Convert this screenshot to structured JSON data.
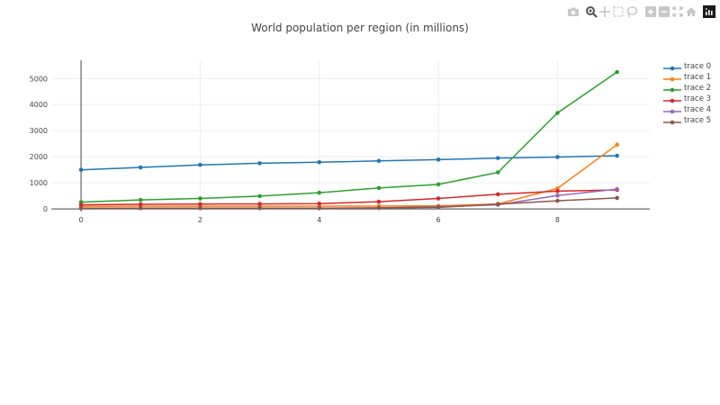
{
  "modebar": {
    "buttons": [
      {
        "name": "camera-icon",
        "label": "Download plot as a png"
      },
      {
        "name": "zoom-icon",
        "label": "Zoom"
      },
      {
        "name": "pan-icon",
        "label": "Pan"
      },
      {
        "name": "box-select-icon",
        "label": "Box Select"
      },
      {
        "name": "lasso-select-icon",
        "label": "Lasso Select"
      },
      {
        "name": "zoom-in-icon",
        "label": "Zoom in"
      },
      {
        "name": "zoom-out-icon",
        "label": "Zoom out"
      },
      {
        "name": "autoscale-icon",
        "label": "Autoscale"
      },
      {
        "name": "reset-axes-icon",
        "label": "Reset axes"
      },
      {
        "name": "plotly-logo-icon",
        "label": "Produced with Plotly"
      }
    ]
  },
  "colors": {
    "trace0": "#1f77b4",
    "trace1": "#ff7f0e",
    "trace2": "#2ca02c",
    "trace3": "#d62728",
    "trace4": "#9467bd",
    "trace5": "#8c564b",
    "grid": "#eeeeee",
    "axis_text": "#444444"
  },
  "chart_data": {
    "type": "line",
    "title": "World population per region (in millions)",
    "xlabel": "",
    "ylabel": "",
    "x": [
      0,
      1,
      2,
      3,
      4,
      5,
      6,
      7,
      8,
      9
    ],
    "xlim": [
      -0.5,
      9.55
    ],
    "ylim": [
      -100,
      5700
    ],
    "xticks": [
      "0",
      "2",
      "4",
      "6",
      "8"
    ],
    "yticks": [
      "0",
      "1000",
      "2000",
      "3000",
      "4000",
      "5000"
    ],
    "grid": true,
    "legend_position": "right",
    "series": [
      {
        "name": "trace 0",
        "color": "#1f77b4",
        "values": [
          1500,
          1590,
          1690,
          1750,
          1790,
          1840,
          1890,
          1950,
          1990,
          2040
        ]
      },
      {
        "name": "trace 1",
        "color": "#ff7f0e",
        "values": [
          100,
          105,
          105,
          105,
          107,
          107,
          120,
          190,
          785,
          2460
        ]
      },
      {
        "name": "trace 2",
        "color": "#2ca02c",
        "values": [
          260,
          345,
          400,
          490,
          620,
          800,
          940,
          1400,
          3680,
          5250
        ]
      },
      {
        "name": "trace 3",
        "color": "#d62728",
        "values": [
          160,
          175,
          185,
          190,
          200,
          275,
          400,
          560,
          680,
          730
        ]
      },
      {
        "name": "trace 4",
        "color": "#9467bd",
        "values": [
          30,
          30,
          30,
          30,
          30,
          40,
          80,
          160,
          510,
          760
        ]
      },
      {
        "name": "trace 5",
        "color": "#8c564b",
        "values": [
          25,
          25,
          25,
          25,
          25,
          35,
          60,
          180,
          310,
          420
        ]
      }
    ]
  }
}
